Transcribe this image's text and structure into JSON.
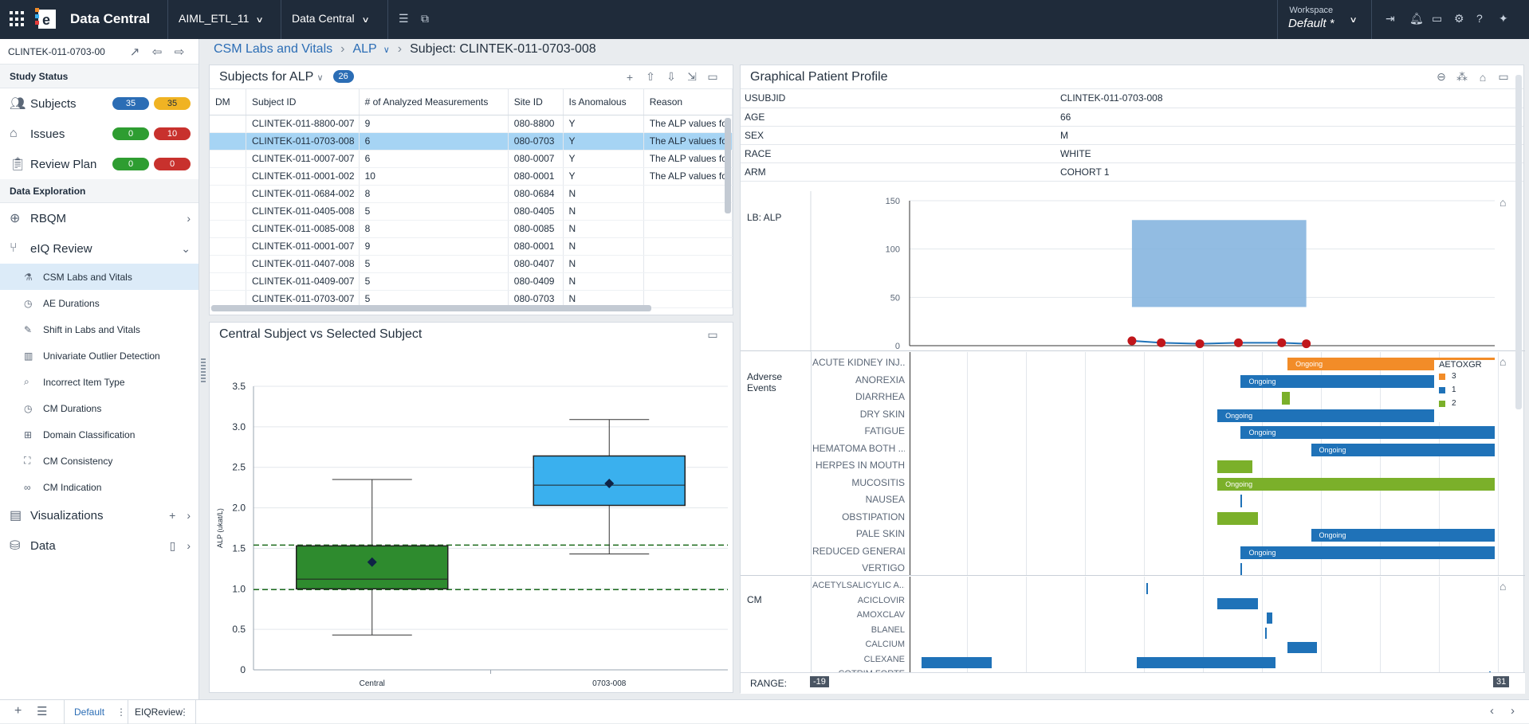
{
  "topbar": {
    "app_name": "Data Central",
    "project_dd": "AIML_ETL_11",
    "module_dd": "Data Central",
    "workspace_label": "Workspace",
    "workspace_value": "Default",
    "workspace_star": "*"
  },
  "leftnav": {
    "study_id": "CLINTEK-011-0703-00",
    "study_status_header": "Study Status",
    "subjects_label": "Subjects",
    "subjects_count_a": "35",
    "subjects_count_b": "35",
    "issues_label": "Issues",
    "issues_count_a": "0",
    "issues_count_b": "10",
    "review_plan_label": "Review Plan",
    "review_count_a": "0",
    "review_count_b": "0",
    "data_exploration_header": "Data Exploration",
    "rbqm_label": "RBQM",
    "eiq_label": "eIQ Review",
    "sub_items": [
      "CSM Labs and Vitals",
      "AE Durations",
      "Shift in Labs and Vitals",
      "Univariate Outlier Detection",
      "Incorrect Item Type",
      "CM Durations",
      "Domain Classification",
      "CM Consistency",
      "CM Indication"
    ],
    "visualizations_label": "Visualizations",
    "data_label": "Data"
  },
  "breadcrumb": {
    "crumb1": "CSM Labs and Vitals",
    "crumb2": "ALP",
    "crumb3": "Subject: CLINTEK-011-0703-008"
  },
  "subjects_panel": {
    "title": "Subjects for ALP",
    "count": "26",
    "columns": [
      "DM",
      "Subject ID",
      "# of Analyzed Measurements",
      "Site ID",
      "Is Anomalous",
      "Reason"
    ],
    "rows": [
      [
        "",
        "CLINTEK-011-8800-007",
        "9",
        "080-8800",
        "Y",
        "The ALP values fo"
      ],
      [
        "",
        "CLINTEK-011-0703-008",
        "6",
        "080-0703",
        "Y",
        "The ALP values fo"
      ],
      [
        "",
        "CLINTEK-011-0007-007",
        "6",
        "080-0007",
        "Y",
        "The ALP values fo"
      ],
      [
        "",
        "CLINTEK-011-0001-002",
        "10",
        "080-0001",
        "Y",
        "The ALP values fo"
      ],
      [
        "",
        "CLINTEK-011-0684-002",
        "8",
        "080-0684",
        "N",
        ""
      ],
      [
        "",
        "CLINTEK-011-0405-008",
        "5",
        "080-0405",
        "N",
        ""
      ],
      [
        "",
        "CLINTEK-011-0085-008",
        "8",
        "080-0085",
        "N",
        ""
      ],
      [
        "",
        "CLINTEK-011-0001-007",
        "9",
        "080-0001",
        "N",
        ""
      ],
      [
        "",
        "CLINTEK-011-0407-008",
        "5",
        "080-0407",
        "N",
        ""
      ],
      [
        "",
        "CLINTEK-011-0409-007",
        "5",
        "080-0409",
        "N",
        ""
      ],
      [
        "",
        "CLINTEK-011-0703-007",
        "5",
        "080-0703",
        "N",
        ""
      ]
    ],
    "selected_row": 1
  },
  "boxplot_panel": {
    "title": "Central Subject vs Selected Subject"
  },
  "chart_data": [
    {
      "type": "box",
      "title": "Central Subject vs Selected Subject",
      "ylabel": "ALP (ukat/L)",
      "ylim": [
        0,
        3.5
      ],
      "yticks": [
        "0",
        "0.5",
        "1.0",
        "1.5",
        "2.0",
        "2.5",
        "3.0",
        "3.5"
      ],
      "categories": [
        "Central",
        "0703-008"
      ],
      "boxes": [
        {
          "category": "Central",
          "min": 0.43,
          "q1": 1.0,
          "median": 1.12,
          "q3": 1.53,
          "max": 2.35,
          "mean": 1.33,
          "color": "#2e8b2e"
        },
        {
          "category": "0703-008",
          "min": 1.43,
          "q1": 2.03,
          "median": 2.28,
          "q3": 2.64,
          "max": 3.09,
          "mean": 2.3,
          "color": "#3ab0ee"
        }
      ],
      "reference_lines": [
        1.54,
        0.99
      ]
    },
    {
      "type": "range-line",
      "ylim": [
        0,
        150
      ],
      "yticks": [
        "0",
        "50",
        "100",
        "150"
      ],
      "normal_range": [
        40,
        130
      ],
      "x_domain": [
        -19,
        31
      ],
      "points": [
        [
          0,
          5
        ],
        [
          2.5,
          3
        ],
        [
          5.8,
          2
        ],
        [
          9.1,
          3
        ],
        [
          12.8,
          3
        ],
        [
          14.9,
          2
        ]
      ]
    }
  ],
  "profile_panel": {
    "title": "Graphical Patient Profile",
    "demographics": [
      [
        "USUBJID",
        "CLINTEK-011-0703-008"
      ],
      [
        "AGE",
        "66"
      ],
      [
        "SEX",
        "M"
      ],
      [
        "RACE",
        "WHITE"
      ],
      [
        "ARM",
        "COHORT 1"
      ]
    ],
    "lb_label": "LB: ALP",
    "ae_label": "Adverse Events",
    "cm_label": "CM",
    "range_label": "RANGE:",
    "range_min": "-19",
    "range_max": "31",
    "legend_title": "AETOXGR",
    "legend": [
      {
        "label": "3",
        "color": "#f28c28"
      },
      {
        "label": "1",
        "color": "#1f72b8"
      },
      {
        "label": "2",
        "color": "#7bb02a"
      }
    ],
    "ae_terms": [
      "ACUTE KIDNEY INJ...",
      "ANOREXIA",
      "DIARRHEA",
      "DRY SKIN",
      "FATIGUE",
      "HEMATOMA BOTH ...",
      "HERPES IN MOUTH",
      "MUCOSITIS",
      "NAUSEA",
      "OBSTIPATION",
      "PALE SKIN",
      "REDUCED GENERAL...",
      "VERTIGO"
    ],
    "cm_terms": [
      "ACETYLSALICYLIC A...",
      "ACICLOVIR",
      "AMOXCLAV",
      "BLANEL",
      "CALCIUM",
      "CLEXANE",
      "COTRIM FORTE"
    ],
    "ongoing_text": "Ongoing"
  },
  "bottombar": {
    "tab1": "Default",
    "tab2": "EIQReview"
  }
}
